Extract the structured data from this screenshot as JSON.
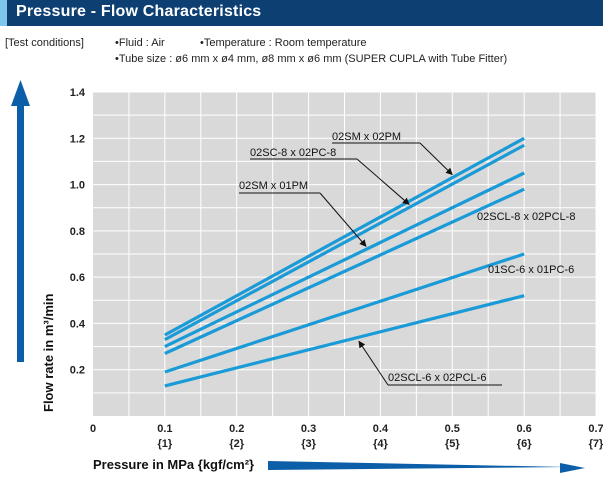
{
  "header": {
    "title": "Pressure - Flow Characteristics",
    "accent_color": "#7ec6ee",
    "bar_color": "#0d3f72"
  },
  "conditions": {
    "label": "[Test conditions]",
    "fluid": "•Fluid : Air",
    "temperature": "•Temperature : Room temperature",
    "tube_size": "•Tube size : ø6 mm x ø4 mm, ø8 mm x ø6 mm (SUPER CUPLA with Tube Fitter)"
  },
  "chart_data": {
    "type": "line",
    "title": "Pressure - Flow Characteristics",
    "xlabel": "Pressure in MPa {kgf/cm²}",
    "ylabel": "Flow rate in m³/min",
    "xlim": [
      0,
      0.7
    ],
    "ylim": [
      0,
      1.4
    ],
    "x_ticks": [
      0,
      0.1,
      0.2,
      0.3,
      0.4,
      0.5,
      0.6,
      0.7
    ],
    "x_tick_labels": [
      "0",
      "0.1",
      "0.2",
      "0.3",
      "0.4",
      "0.5",
      "0.6",
      "0.7"
    ],
    "x_tick_sublabels": [
      "",
      "{1}",
      "{2}",
      "{3}",
      "{4}",
      "{5}",
      "{6}",
      "{7}"
    ],
    "y_ticks": [
      0.2,
      0.4,
      0.6,
      0.8,
      1.0,
      1.2,
      1.4
    ],
    "y_tick_labels": [
      "0.2",
      "0.4",
      "0.6",
      "0.8",
      "1.0",
      "1.2",
      "1.4"
    ],
    "grid": true,
    "plot_background": "#d9d9d9",
    "line_color": "#1a9bd7",
    "arrow_color": "#0d5ea8",
    "series": [
      {
        "name": "02SM x 02PM",
        "x": [
          0.1,
          0.6
        ],
        "y": [
          0.35,
          1.2
        ]
      },
      {
        "name": "02SC-8 x 02PC-8",
        "x": [
          0.1,
          0.6
        ],
        "y": [
          0.33,
          1.17
        ]
      },
      {
        "name": "02SM x 01PM",
        "x": [
          0.1,
          0.6
        ],
        "y": [
          0.3,
          1.05
        ]
      },
      {
        "name": "02SCL-8 x 02PCL-8",
        "x": [
          0.1,
          0.6
        ],
        "y": [
          0.27,
          0.98
        ]
      },
      {
        "name": "01SC-6 x 01PC-6",
        "x": [
          0.1,
          0.6
        ],
        "y": [
          0.19,
          0.7
        ]
      },
      {
        "name": "02SCL-6 x 02PCL-6",
        "x": [
          0.1,
          0.6
        ],
        "y": [
          0.13,
          0.52
        ]
      }
    ]
  }
}
